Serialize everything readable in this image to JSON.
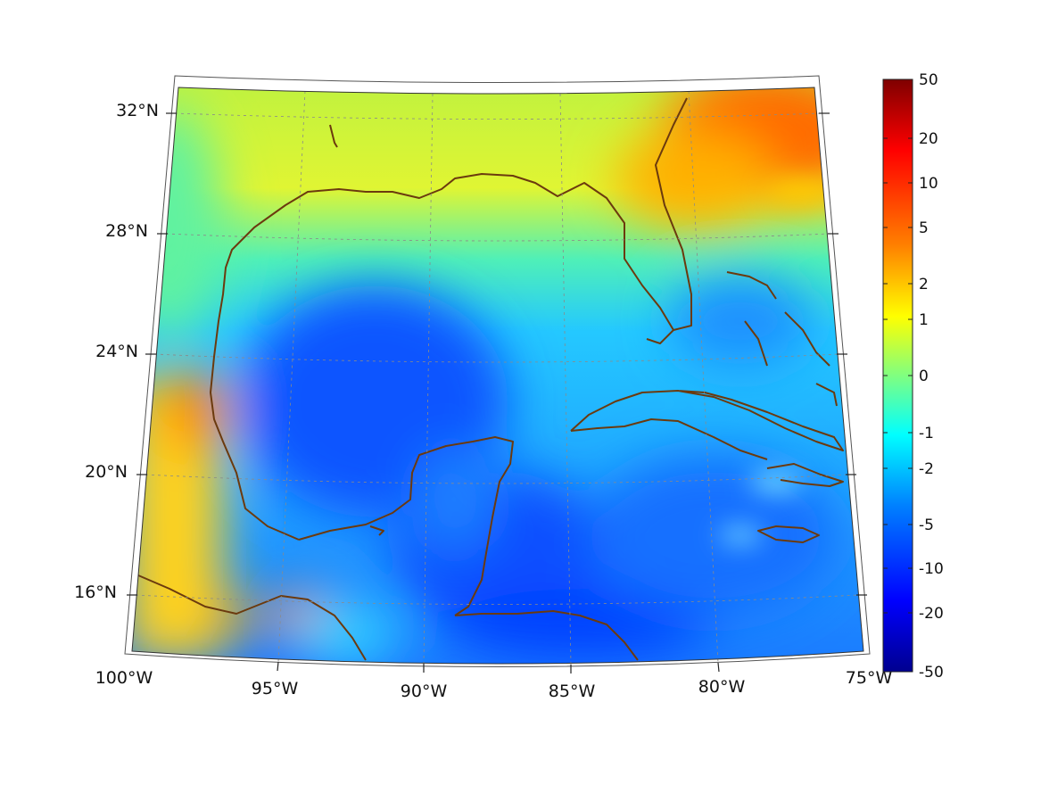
{
  "map": {
    "lat_labels": [
      "32°N",
      "28°N",
      "24°N",
      "20°N",
      "16°N"
    ],
    "lon_labels": [
      "100°W",
      "95°W",
      "90°W",
      "85°W",
      "80°W",
      "75°W"
    ],
    "coast_color": "#6b3a0e",
    "grid_color": "#8a8a8a",
    "colormap": "jet"
  },
  "colorbar": {
    "tick_labels": [
      "50",
      "20",
      "10",
      "5",
      "2",
      "1",
      "0",
      "-1",
      "-2",
      "-5",
      "-10",
      "-20",
      "-50"
    ],
    "colors": [
      "#7f0000",
      "#ff0000",
      "#ff8000",
      "#ffff00",
      "#80ff80",
      "#00ffff",
      "#0080ff",
      "#0000ff",
      "#00008f"
    ]
  }
}
